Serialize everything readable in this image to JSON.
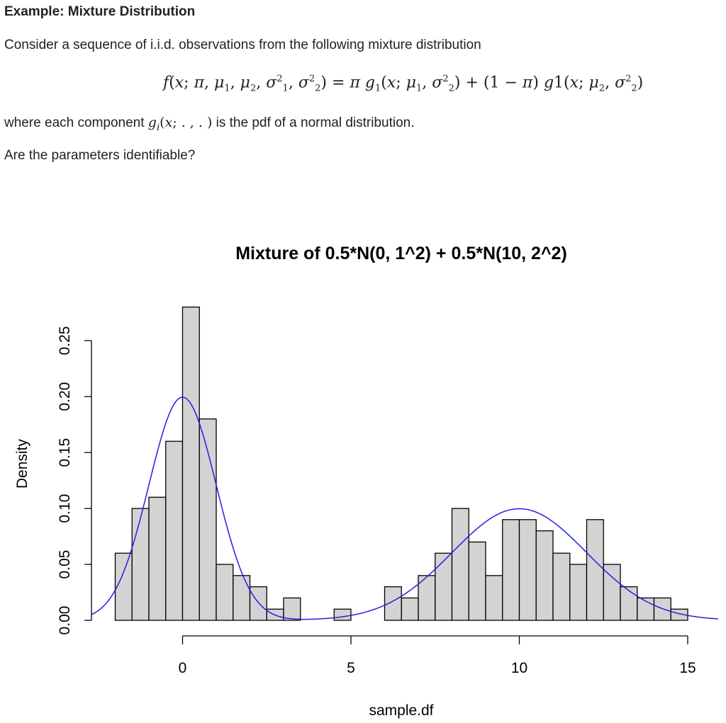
{
  "heading": "Example: Mixture Distribution",
  "intro": "Consider a sequence of i.i.d. observations from the following mixture distribution",
  "where_prefix": "where each component",
  "where_suffix": "is the pdf of a normal distribution.",
  "question": "Are the parameters identifiable?",
  "colors": {
    "bar_fill": "#d3d3d3",
    "bar_stroke": "#000000",
    "curve": "#2020e0"
  },
  "chart_data": {
    "type": "bar",
    "title": "Mixture of 0.5*N(0, 1^2) + 0.5*N(10, 2^2)",
    "xlabel": "sample.df",
    "ylabel": "Density",
    "xlim": [
      -2.7,
      15.9
    ],
    "ylim": [
      0,
      0.28
    ],
    "xticks": [
      0,
      5,
      10,
      15
    ],
    "yticks": [
      0.0,
      0.05,
      0.1,
      0.15,
      0.2,
      0.25
    ],
    "ytick_labels": [
      "0.00",
      "0.05",
      "0.10",
      "0.15",
      "0.20",
      "0.25"
    ],
    "bin_width": 0.5,
    "bins": [
      {
        "x0": -2.0,
        "density": 0.06
      },
      {
        "x0": -1.5,
        "density": 0.1
      },
      {
        "x0": -1.0,
        "density": 0.11
      },
      {
        "x0": -0.5,
        "density": 0.16
      },
      {
        "x0": 0.0,
        "density": 0.28
      },
      {
        "x0": 0.5,
        "density": 0.18
      },
      {
        "x0": 1.0,
        "density": 0.05
      },
      {
        "x0": 1.5,
        "density": 0.04
      },
      {
        "x0": 2.0,
        "density": 0.03
      },
      {
        "x0": 2.5,
        "density": 0.01
      },
      {
        "x0": 3.0,
        "density": 0.02
      },
      {
        "x0": 4.5,
        "density": 0.01
      },
      {
        "x0": 6.0,
        "density": 0.03
      },
      {
        "x0": 6.5,
        "density": 0.02
      },
      {
        "x0": 7.0,
        "density": 0.04
      },
      {
        "x0": 7.5,
        "density": 0.06
      },
      {
        "x0": 8.0,
        "density": 0.1
      },
      {
        "x0": 8.5,
        "density": 0.07
      },
      {
        "x0": 9.0,
        "density": 0.04
      },
      {
        "x0": 9.5,
        "density": 0.09
      },
      {
        "x0": 10.0,
        "density": 0.09
      },
      {
        "x0": 10.5,
        "density": 0.08
      },
      {
        "x0": 11.0,
        "density": 0.06
      },
      {
        "x0": 11.5,
        "density": 0.05
      },
      {
        "x0": 12.0,
        "density": 0.09
      },
      {
        "x0": 12.5,
        "density": 0.05
      },
      {
        "x0": 13.0,
        "density": 0.03
      },
      {
        "x0": 13.5,
        "density": 0.02
      },
      {
        "x0": 14.0,
        "density": 0.02
      },
      {
        "x0": 14.5,
        "density": 0.01
      }
    ],
    "density_curve": {
      "weights": [
        0.5,
        0.5
      ],
      "means": [
        0,
        10
      ],
      "sds": [
        1,
        2
      ]
    }
  }
}
